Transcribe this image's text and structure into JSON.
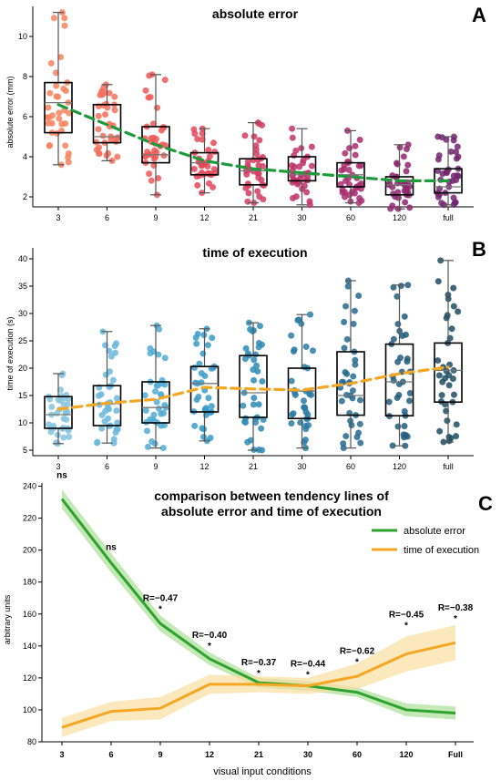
{
  "chart_data": [
    {
      "type": "box",
      "panel_letter": "A",
      "title": "absolute error",
      "xlabel": "",
      "ylabel": "absolute error (mm)",
      "ylim": [
        1.5,
        11.5
      ],
      "yticks": [
        2,
        4,
        6,
        8,
        10
      ],
      "categories": [
        "3",
        "6",
        "9",
        "12",
        "21",
        "30",
        "60",
        "120",
        "full"
      ],
      "point_color": "#f46d5e",
      "point_colors": [
        "#f7845f",
        "#f4705d",
        "#ee5a57",
        "#e4485a",
        "#d33d62",
        "#c0346a",
        "#a92d6f",
        "#8f2871",
        "#722670"
      ],
      "trend_color": "#1e9a3a",
      "box": [
        {
          "min": 3.6,
          "q1": 5.2,
          "median": 6.7,
          "q3": 7.7,
          "max": 11.2
        },
        {
          "min": 3.8,
          "q1": 4.7,
          "median": 5.0,
          "q3": 6.6,
          "max": 7.6
        },
        {
          "min": 2.1,
          "q1": 3.7,
          "median": 4.1,
          "q3": 5.5,
          "max": 8.1
        },
        {
          "min": 2.2,
          "q1": 3.1,
          "median": 3.7,
          "q3": 4.2,
          "max": 5.4
        },
        {
          "min": 1.7,
          "q1": 2.6,
          "median": 3.3,
          "q3": 3.9,
          "max": 5.7
        },
        {
          "min": 1.6,
          "q1": 2.8,
          "median": 3.1,
          "q3": 4.0,
          "max": 5.4
        },
        {
          "min": 1.7,
          "q1": 2.5,
          "median": 3.1,
          "q3": 3.7,
          "max": 5.3
        },
        {
          "min": 1.4,
          "q1": 2.1,
          "median": 2.6,
          "q3": 3.0,
          "max": 4.6
        },
        {
          "min": 1.6,
          "q1": 2.2,
          "median": 2.5,
          "q3": 3.4,
          "max": 5.0
        }
      ],
      "trend": [
        6.6,
        5.6,
        4.6,
        3.8,
        3.4,
        3.2,
        3.0,
        2.8,
        2.8
      ]
    },
    {
      "type": "box",
      "panel_letter": "B",
      "title": "time of execution",
      "xlabel": "",
      "ylabel": "time of execution (s)",
      "ylim": [
        4,
        42
      ],
      "yticks": [
        5,
        10,
        15,
        20,
        25,
        30,
        35,
        40
      ],
      "categories": [
        "3",
        "6",
        "9",
        "12",
        "21",
        "30",
        "60",
        "120",
        "full"
      ],
      "point_colors": [
        "#86c4df",
        "#6bb8dc",
        "#51abd4",
        "#3a9cc7",
        "#2f8cb6",
        "#2a7ca4",
        "#276b8f",
        "#235d7c",
        "#1f4d64"
      ],
      "trend_color": "#f5a623",
      "box": [
        {
          "min": 6.2,
          "q1": 9.0,
          "median": 11.5,
          "q3": 14.8,
          "max": 19.0
        },
        {
          "min": 6.3,
          "q1": 9.5,
          "median": 13.5,
          "q3": 16.8,
          "max": 26.7
        },
        {
          "min": 5.4,
          "q1": 10.0,
          "median": 12.8,
          "q3": 17.5,
          "max": 27.8
        },
        {
          "min": 6.7,
          "q1": 12.0,
          "median": 17.2,
          "q3": 20.3,
          "max": 27.2
        },
        {
          "min": 5.0,
          "q1": 11.0,
          "median": 15.5,
          "q3": 22.3,
          "max": 28.3
        },
        {
          "min": 5.4,
          "q1": 10.8,
          "median": 15.8,
          "q3": 20.0,
          "max": 29.8
        },
        {
          "min": 5.4,
          "q1": 11.4,
          "median": 15.0,
          "q3": 23.0,
          "max": 36.0
        },
        {
          "min": 5.8,
          "q1": 11.3,
          "median": 17.5,
          "q3": 24.4,
          "max": 35.2
        },
        {
          "min": 6.5,
          "q1": 13.8,
          "median": 19.6,
          "q3": 24.6,
          "max": 39.7
        }
      ],
      "trend": [
        12.5,
        13.6,
        14.3,
        16.5,
        16.2,
        16.0,
        17.2,
        19.0,
        20.2
      ]
    },
    {
      "type": "line",
      "panel_letter": "C",
      "title": "comparison between tendency lines of",
      "subtitle": "absolute error and time of execution",
      "xlabel": "visual input conditions",
      "ylabel": "arbitrary units",
      "ylim": [
        80,
        242
      ],
      "yticks": [
        80,
        100,
        120,
        140,
        160,
        180,
        200,
        220,
        240
      ],
      "categories": [
        "3",
        "6",
        "9",
        "12",
        "21",
        "30",
        "60",
        "120",
        "Full"
      ],
      "series": [
        {
          "name": "absolute error",
          "color": "#2ea32e",
          "band_color": "#a6dc90",
          "values": [
            232,
            192,
            154,
            132,
            117,
            115,
            111,
            100,
            98
          ],
          "lower": [
            226,
            186,
            149,
            128,
            114,
            112,
            108,
            96,
            94
          ],
          "upper": [
            238,
            198,
            159,
            136,
            120,
            118,
            114,
            104,
            102
          ]
        },
        {
          "name": "time of execution",
          "color": "#f5a623",
          "band_color": "#fbdc9a",
          "values": [
            89,
            99,
            101,
            116,
            116,
            115,
            121,
            135,
            142
          ],
          "lower": [
            83,
            93,
            94,
            110,
            111,
            110,
            113,
            124,
            131
          ],
          "upper": [
            95,
            105,
            108,
            122,
            121,
            120,
            129,
            146,
            153
          ]
        }
      ],
      "annotations": [
        {
          "category": "3",
          "text": "ns",
          "level": 245
        },
        {
          "category": "6",
          "text": "ns",
          "level": 200
        },
        {
          "category": "9",
          "text": "R=−0.47",
          "level": 168,
          "star": "*"
        },
        {
          "category": "12",
          "text": "R=−0.40",
          "level": 145,
          "star": "*"
        },
        {
          "category": "21",
          "text": "R=−0.37",
          "level": 128,
          "star": "*"
        },
        {
          "category": "30",
          "text": "R=−0.44",
          "level": 127,
          "star": "*"
        },
        {
          "category": "60",
          "text": "R=−0.62",
          "level": 135,
          "star": "*"
        },
        {
          "category": "120",
          "text": "R=−0.45",
          "level": 158,
          "star": "*"
        },
        {
          "category": "Full",
          "text": "R=−0.38",
          "level": 162,
          "star": "*"
        }
      ]
    }
  ]
}
